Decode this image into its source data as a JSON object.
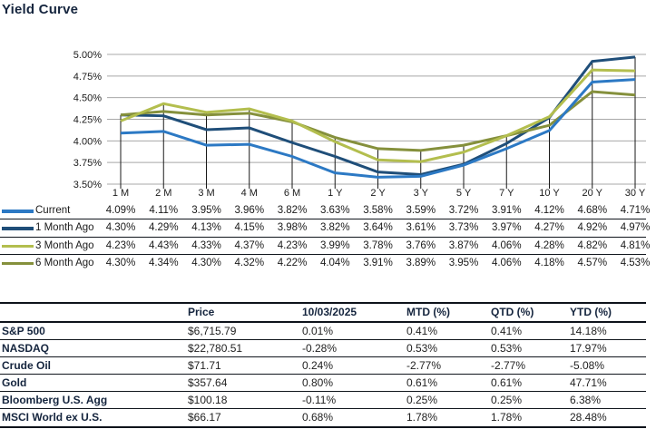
{
  "title": "Yield Curve",
  "colors": {
    "title_text": "#15253E",
    "body_text": "#1A1A1A",
    "gridline": "#A8A8A8",
    "dropline": "#191919",
    "table_border": "#10151C"
  },
  "chart_data": {
    "type": "line",
    "title": "Yield Curve",
    "categories": [
      "1 M",
      "2 M",
      "3 M",
      "4 M",
      "6 M",
      "1 Y",
      "2 Y",
      "3 Y",
      "5 Y",
      "7 Y",
      "10 Y",
      "20 Y",
      "30 Y"
    ],
    "y_ticks": [
      "5.00%",
      "4.75%",
      "4.50%",
      "4.25%",
      "4.00%",
      "3.75%",
      "3.50%"
    ],
    "ylim": [
      3.5,
      5.0
    ],
    "y_tick_step": 0.25,
    "unit": "%",
    "grid": "horizontal",
    "droplines": true,
    "legend_position": "table-below-left",
    "series": [
      {
        "name": "Current",
        "color": "#2C79C4",
        "values": [
          4.09,
          4.11,
          3.95,
          3.96,
          3.82,
          3.63,
          3.58,
          3.59,
          3.72,
          3.91,
          4.12,
          4.68,
          4.71
        ]
      },
      {
        "name": "1 Month Ago",
        "color": "#1F4E79",
        "values": [
          4.3,
          4.29,
          4.13,
          4.15,
          3.98,
          3.82,
          3.64,
          3.61,
          3.73,
          3.97,
          4.27,
          4.92,
          4.97
        ]
      },
      {
        "name": "3 Month Ago",
        "color": "#B3BE4E",
        "values": [
          4.23,
          4.43,
          4.33,
          4.37,
          4.23,
          3.99,
          3.78,
          3.76,
          3.87,
          4.06,
          4.28,
          4.82,
          4.81
        ]
      },
      {
        "name": "6 Month Ago",
        "color": "#85903C",
        "values": [
          4.3,
          4.34,
          4.3,
          4.32,
          4.22,
          4.04,
          3.91,
          3.89,
          3.95,
          4.06,
          4.18,
          4.57,
          4.53
        ]
      }
    ]
  },
  "market_table": {
    "headers": [
      "",
      "Price",
      "10/03/2025",
      "MTD (%)",
      "QTD (%)",
      "YTD (%)"
    ],
    "rows": [
      {
        "name": "S&P 500",
        "price": "$6,715.79",
        "day": "0.01%",
        "mtd": "0.41%",
        "qtd": "0.41%",
        "ytd": "14.18%"
      },
      {
        "name": "NASDAQ",
        "price": "$22,780.51",
        "day": "-0.28%",
        "mtd": "0.53%",
        "qtd": "0.53%",
        "ytd": "17.97%"
      },
      {
        "name": "Crude Oil",
        "price": "$71.71",
        "day": "0.24%",
        "mtd": "-2.77%",
        "qtd": "-2.77%",
        "ytd": "-5.08%"
      },
      {
        "name": "Gold",
        "price": "$357.64",
        "day": "0.80%",
        "mtd": "0.61%",
        "qtd": "0.61%",
        "ytd": "47.71%"
      },
      {
        "name": "Bloomberg U.S. Agg",
        "price": "$100.18",
        "day": "-0.11%",
        "mtd": "0.25%",
        "qtd": "0.25%",
        "ytd": "6.38%"
      },
      {
        "name": "MSCI World ex U.S.",
        "price": "$66.17",
        "day": "0.68%",
        "mtd": "1.78%",
        "qtd": "1.78%",
        "ytd": "28.48%"
      }
    ]
  }
}
